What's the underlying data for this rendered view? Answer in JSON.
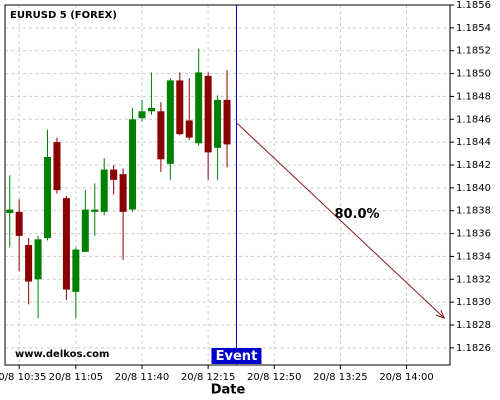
{
  "chart_data": {
    "type": "candlestick",
    "title": "EURUSD 5 (FOREX)",
    "watermark": "www.delkos.com",
    "x_label": "Date",
    "open": [
      1.18378,
      1.18379,
      1.1835,
      1.1832,
      1.18356,
      1.1844,
      1.18391,
      1.18309,
      1.18344,
      1.18379,
      1.18379,
      1.18416,
      1.18412,
      1.18381,
      1.18461,
      1.18467,
      1.18467,
      1.18421,
      1.18494,
      1.18459,
      1.18439,
      1.18498,
      1.18435,
      1.18477
    ],
    "high": [
      1.18411,
      1.1839,
      1.18356,
      1.18358,
      1.18451,
      1.18444,
      1.18393,
      1.18348,
      1.18398,
      1.18404,
      1.18426,
      1.1842,
      1.18417,
      1.1847,
      1.18477,
      1.18501,
      1.18475,
      1.18496,
      1.18501,
      1.18496,
      1.18522,
      1.18501,
      1.18481,
      1.18503
    ],
    "low": [
      1.18348,
      1.18327,
      1.18298,
      1.18286,
      1.18354,
      1.18395,
      1.18302,
      1.18286,
      1.18344,
      1.18358,
      1.18376,
      1.18394,
      1.18337,
      1.18379,
      1.18458,
      1.18464,
      1.18414,
      1.18407,
      1.18446,
      1.18442,
      1.18437,
      1.18407,
      1.18407,
      1.18418
    ],
    "close": [
      1.18381,
      1.18358,
      1.18318,
      1.18355,
      1.18427,
      1.18398,
      1.18311,
      1.18346,
      1.18381,
      1.18381,
      1.18416,
      1.18407,
      1.18379,
      1.1846,
      1.18467,
      1.1847,
      1.18425,
      1.18494,
      1.18447,
      1.18444,
      1.18501,
      1.18431,
      1.18477,
      1.18438
    ],
    "up_color": "#008000",
    "down_color": "#8b0000",
    "xlim": [
      -0.5,
      46.6
    ],
    "xticks": [
      {
        "value": 1,
        "label": "20/8 10:35"
      },
      {
        "value": 7,
        "label": "20/8 11:05"
      },
      {
        "value": 14,
        "label": "20/8 11:40"
      },
      {
        "value": 21,
        "label": "20/8 12:15"
      },
      {
        "value": 28,
        "label": "20/8 12:50"
      },
      {
        "value": 35,
        "label": "20/8 13:25"
      },
      {
        "value": 42,
        "label": "20/8 14:00"
      }
    ],
    "ylim": [
      1.18245,
      1.1856
    ],
    "yticks": [
      1.1826,
      1.1828,
      {
        "value": 1.183,
        "label": "1.1830"
      },
      1.1832,
      1.1834,
      1.1836,
      1.1838,
      {
        "value": 1.184,
        "label": "1.1840"
      },
      1.1842,
      1.1844,
      1.1846,
      1.1848,
      {
        "value": 1.185,
        "label": "1.1850"
      },
      1.1852,
      1.1854,
      1.1856
    ],
    "grid": true,
    "event": {
      "label": "Event",
      "x": 24,
      "color": "#0000cc"
    },
    "projection": {
      "label": "80.0%",
      "x": [
        24,
        46
      ],
      "y": [
        1.18457,
        1.18286
      ],
      "color": "#8b1a1a"
    }
  }
}
